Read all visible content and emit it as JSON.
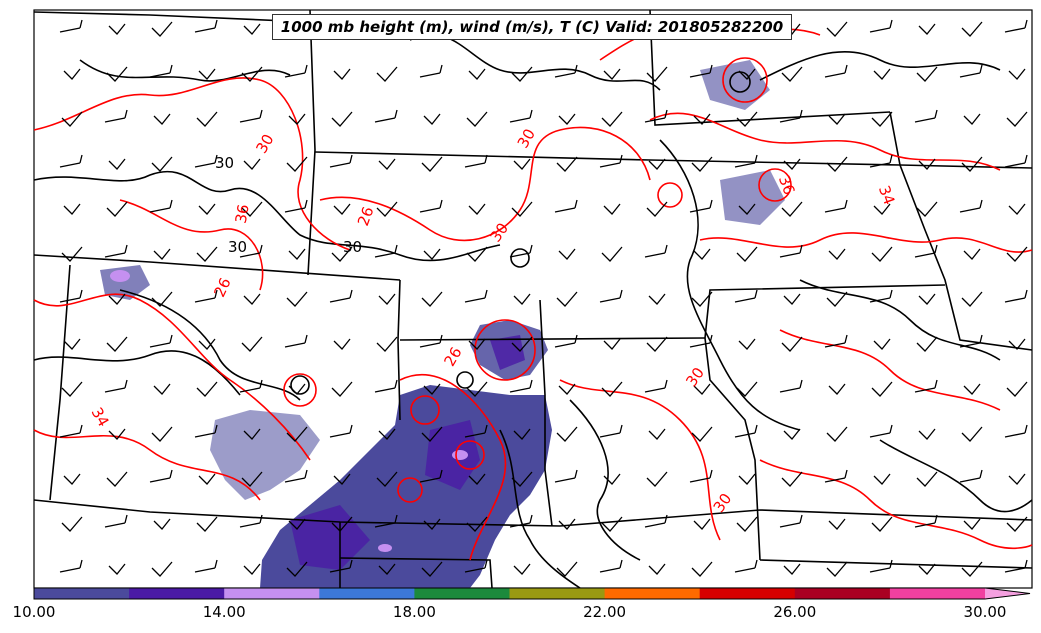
{
  "title": "1000 mb height (m), wind (m/s), T (C) Valid: 201805282200",
  "colorbar": {
    "min": 10,
    "max": 31,
    "colors": [
      "#4b4a9c",
      "#4a1aa5",
      "#c590f0",
      "#3c78d8",
      "#1c8a3c",
      "#9a9a12",
      "#ff6a00",
      "#d60000",
      "#aa0022",
      "#f040a0",
      "#f5a0e0"
    ],
    "ticks": [
      {
        "value": 10,
        "label": "10.00"
      },
      {
        "value": 14,
        "label": "14.00"
      },
      {
        "value": 18,
        "label": "18.00"
      },
      {
        "value": 22,
        "label": "22.00"
      },
      {
        "value": 26,
        "label": "26.00"
      },
      {
        "value": 30,
        "label": "30.00"
      }
    ]
  },
  "contour_labels": {
    "height": [
      {
        "text": "30"
      },
      {
        "text": "30"
      },
      {
        "text": "30"
      }
    ],
    "temperature": [
      {
        "text": "30"
      },
      {
        "text": "30"
      },
      {
        "text": "30"
      },
      {
        "text": "30"
      },
      {
        "text": "30"
      },
      {
        "text": "26"
      },
      {
        "text": "26"
      },
      {
        "text": "26"
      },
      {
        "text": "34"
      },
      {
        "text": "34"
      },
      {
        "text": "36"
      },
      {
        "text": "36"
      }
    ]
  },
  "styles": {
    "height_contour_color": "#000000",
    "temperature_contour_color": "#ff0000",
    "precip_fill_color": "#4b4a9c",
    "wind_barb_color": "#000000",
    "state_border_color": "#000000"
  }
}
